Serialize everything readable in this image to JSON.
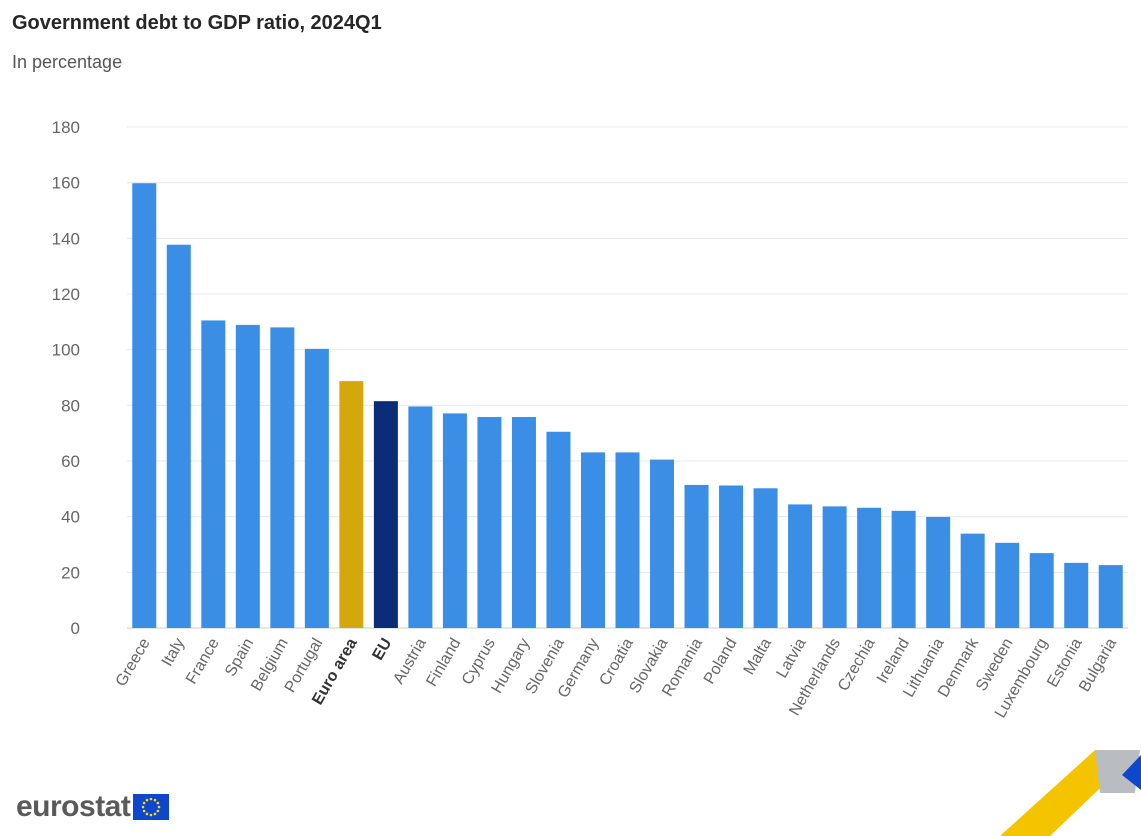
{
  "header": {
    "title": "Government debt to GDP ratio, 2024Q1",
    "subtitle": "In percentage"
  },
  "brand": {
    "logo_text": "eurostat",
    "flag_color": "#0e47cb"
  },
  "colors": {
    "country": "#3a8ee6",
    "euro_area": "#d4a80c",
    "eu": "#0b2c78",
    "grid": "#e4e8ec",
    "tick_text": "#666666"
  },
  "chart_data": {
    "type": "bar",
    "title": "Government debt to GDP ratio, 2024Q1",
    "subtitle": "In percentage",
    "xlabel": "",
    "ylabel": "",
    "ylim": [
      0,
      180
    ],
    "yticks": [
      0,
      20,
      40,
      60,
      80,
      100,
      120,
      140,
      160,
      180
    ],
    "grid": true,
    "categories": [
      "Greece",
      "Italy",
      "France",
      "Spain",
      "Belgium",
      "Portugal",
      "Euro area",
      "EU",
      "Austria",
      "Finland",
      "Cyprus",
      "Hungary",
      "Slovenia",
      "Germany",
      "Croatia",
      "Slovakia",
      "Romania",
      "Poland",
      "Malta",
      "Latvia",
      "Netherlands",
      "Czechia",
      "Ireland",
      "Lithuania",
      "Denmark",
      "Sweden",
      "Luxembourg",
      "Estonia",
      "Bulgaria"
    ],
    "values": [
      159.8,
      137.7,
      110.5,
      108.9,
      108.0,
      100.3,
      88.7,
      81.5,
      79.6,
      77.1,
      75.8,
      75.8,
      70.5,
      63.1,
      63.1,
      60.5,
      51.4,
      51.2,
      50.2,
      44.4,
      43.7,
      43.2,
      42.1,
      39.9,
      33.9,
      30.6,
      26.9,
      23.4,
      22.6
    ],
    "highlight": {
      "Euro area": "euro_area",
      "EU": "eu"
    },
    "bold_labels": [
      "Euro area",
      "EU"
    ]
  }
}
